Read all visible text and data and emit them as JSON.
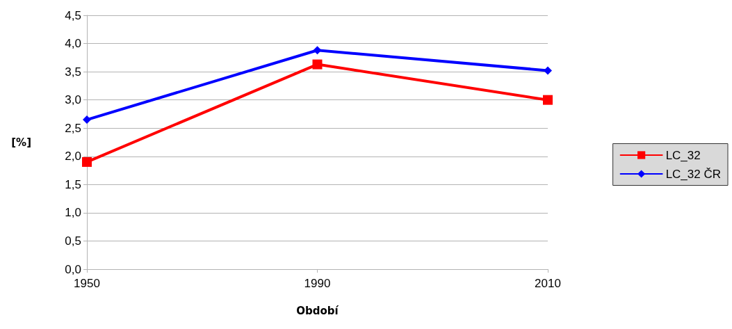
{
  "chart_data": {
    "type": "line",
    "xlabel": "Období",
    "ylabel": "[%]",
    "categories": [
      "1950",
      "1990",
      "2010"
    ],
    "series": [
      {
        "name": "LC_32",
        "color": "#ff0000",
        "marker": "square",
        "values": [
          1.9,
          3.63,
          3.0
        ]
      },
      {
        "name": "LC_32 ČR",
        "color": "#0000ff",
        "marker": "diamond",
        "values": [
          2.65,
          3.88,
          3.52
        ]
      }
    ],
    "ylim": [
      0,
      4.5
    ],
    "yticks": [
      {
        "value": 0,
        "label": "0,0"
      },
      {
        "value": 0.5,
        "label": "0,5"
      },
      {
        "value": 1,
        "label": "1,0"
      },
      {
        "value": 1.5,
        "label": "1,5"
      },
      {
        "value": 2,
        "label": "2,0"
      },
      {
        "value": 2.5,
        "label": "2,5"
      },
      {
        "value": 3,
        "label": "3,0"
      },
      {
        "value": 3.5,
        "label": "3,5"
      },
      {
        "value": 4,
        "label": "4,0"
      },
      {
        "value": 4.5,
        "label": "4,5"
      }
    ],
    "grid": "y",
    "legend": "right",
    "line_style": "solid"
  }
}
